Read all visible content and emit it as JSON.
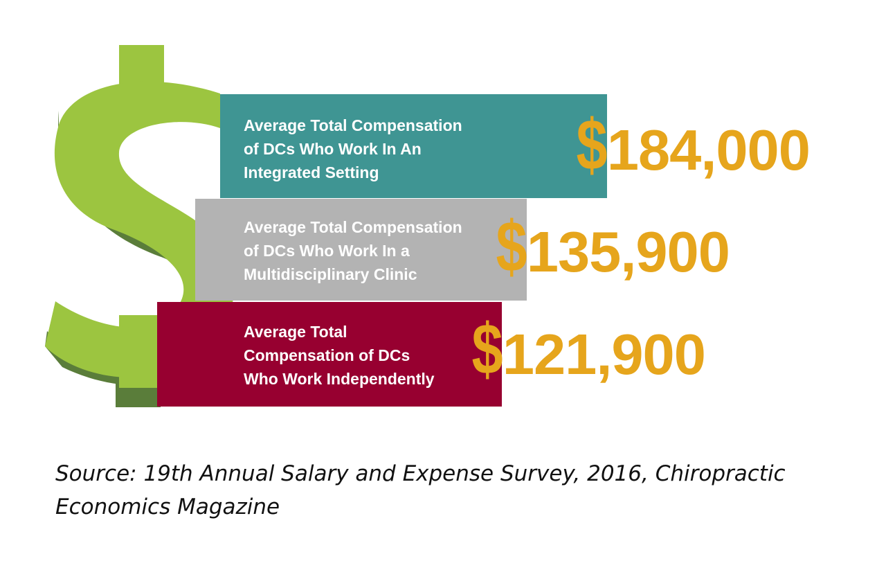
{
  "colors": {
    "dollar_front": "#9cc540",
    "dollar_side": "#5a7d3a",
    "value_text": "#e6a51c",
    "bar_integrated": "#3f9593",
    "bar_multidisciplinary": "#b3b3b3",
    "bar_independent": "#970030"
  },
  "icon": "dollar-sign-icon",
  "chart_data": {
    "type": "bar",
    "orientation": "horizontal",
    "title": "",
    "categories": [
      "Average Total Compensation of DCs Who Work In An Integrated Setting",
      "Average Total Compensation of DCs Who Work In a Multidisciplinary Clinic",
      "Average Total Compensation of DCs Who Work Independently"
    ],
    "values": [
      184000,
      135900,
      121900
    ],
    "bars": [
      {
        "label": "Average Total Compensation\nof DCs Who Work In An\nIntegrated Setting",
        "currency": "$",
        "amount": "184,000",
        "value": 184000,
        "color": "#3f9593"
      },
      {
        "label": "Average Total Compensation\nof DCs Who Work In a\nMultidisciplinary Clinic",
        "currency": "$",
        "amount": "135,900",
        "value": 135900,
        "color": "#b3b3b3"
      },
      {
        "label": "Average Total\nCompensation of DCs\nWho Work Independently",
        "currency": "$",
        "amount": "121,900",
        "value": 121900,
        "color": "#970030"
      }
    ],
    "grid": false,
    "legend": "none"
  },
  "source_text": "Source: 19th Annual Salary and Expense Survey, 2016, Chiropractic Economics Magazine"
}
